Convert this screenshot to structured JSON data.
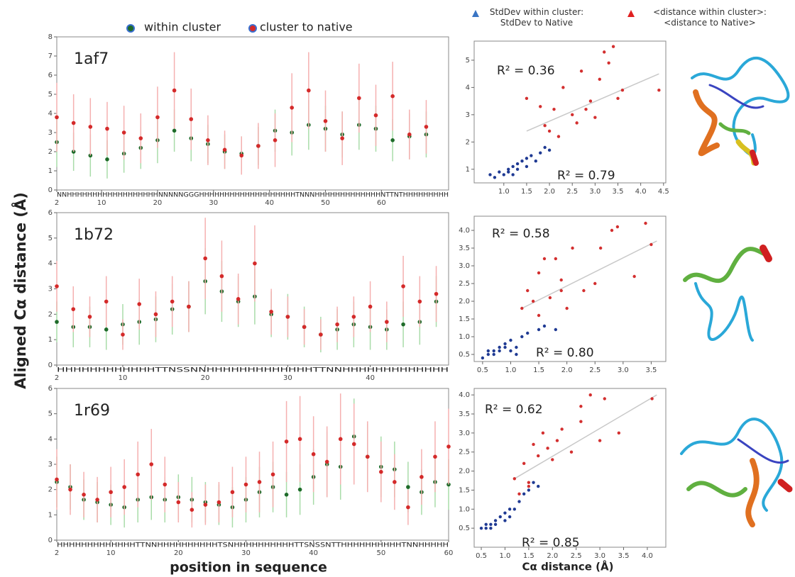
{
  "figure": {
    "ylabel": "Aligned Cα distance (Å)",
    "xlabel_left": "position in sequence",
    "xlabel_right": "Cα distance (Å)"
  },
  "chart_data": [
    {
      "type": "errorbar",
      "label": "1af7",
      "sequence": "NNHHHHHHHHHHHHHHHHHHNNNNNGGGHHHHHHHHHHHHHHHHHHHTNNNHHHHHHHHHHHHHNTTNTHHHHHHHHH",
      "xlim": [
        2,
        72
      ],
      "xticks": [
        2,
        10,
        20,
        30,
        40,
        50,
        60
      ],
      "ylim": [
        0,
        8
      ],
      "yticks": [
        0,
        1,
        2,
        3,
        4,
        5,
        6,
        7,
        8
      ],
      "x": [
        2,
        5,
        8,
        11,
        14,
        17,
        20,
        23,
        26,
        29,
        32,
        35,
        38,
        41,
        44,
        47,
        50,
        53,
        56,
        59,
        62,
        65,
        68
      ],
      "series": [
        {
          "name": "within cluster",
          "color": "#1e6b2a",
          "error_color": "#a9dca9",
          "values": [
            2.5,
            2.0,
            1.8,
            1.6,
            1.9,
            2.2,
            2.6,
            3.1,
            2.7,
            2.4,
            2.0,
            1.9,
            2.3,
            3.1,
            3.0,
            3.4,
            3.2,
            2.9,
            3.4,
            3.2,
            2.6,
            2.8,
            2.9
          ],
          "errors": [
            1.3,
            1.0,
            1.1,
            1.0,
            1.0,
            1.1,
            1.2,
            1.1,
            1.2,
            1.0,
            0.9,
            0.9,
            1.0,
            1.1,
            1.2,
            1.3,
            1.2,
            1.2,
            1.3,
            1.2,
            1.1,
            1.2,
            1.2
          ]
        },
        {
          "name": "cluster to native",
          "color": "#d42a2a",
          "error_color": "#f5b0b0",
          "values": [
            3.8,
            3.5,
            3.3,
            3.2,
            3.0,
            2.7,
            3.8,
            5.2,
            3.7,
            2.6,
            2.1,
            1.8,
            2.3,
            2.6,
            4.3,
            5.2,
            3.6,
            2.7,
            4.8,
            3.9,
            4.9,
            2.9,
            3.3
          ],
          "errors": [
            1.8,
            1.5,
            1.5,
            1.4,
            1.4,
            1.3,
            1.6,
            2.0,
            1.6,
            1.3,
            1.0,
            1.0,
            1.2,
            1.4,
            1.8,
            2.0,
            1.6,
            1.4,
            1.8,
            1.6,
            1.8,
            1.3,
            1.4
          ]
        }
      ]
    },
    {
      "type": "errorbar",
      "label": "1b72",
      "sequence": "HHHHHHHHHHHHTTNSSNNHHHHHHHHHHHHHTTNNHHHHHHHHHHHHH",
      "xlim": [
        2,
        49.5
      ],
      "xticks": [
        2,
        10,
        20,
        30,
        40
      ],
      "ylim": [
        0,
        6
      ],
      "yticks": [
        0,
        1,
        2,
        3,
        4,
        5,
        6
      ],
      "x": [
        2,
        4,
        6,
        8,
        10,
        12,
        14,
        16,
        18,
        20,
        22,
        24,
        26,
        28,
        30,
        32,
        34,
        36,
        38,
        40,
        42,
        44,
        46,
        48
      ],
      "series": [
        {
          "color": "#1e6b2a",
          "error_color": "#a9dca9",
          "values": [
            1.7,
            1.5,
            1.5,
            1.4,
            1.6,
            1.7,
            1.8,
            2.2,
            2.3,
            3.3,
            2.9,
            2.5,
            2.7,
            2.0,
            1.9,
            1.5,
            1.2,
            1.4,
            1.6,
            1.5,
            1.4,
            1.6,
            1.7,
            2.5
          ],
          "errors": [
            0.8,
            0.8,
            0.8,
            0.8,
            0.8,
            0.9,
            0.9,
            1.0,
            1.0,
            1.3,
            1.2,
            1.0,
            1.1,
            0.9,
            0.9,
            0.8,
            0.7,
            0.8,
            0.9,
            0.9,
            0.8,
            0.9,
            0.9,
            1.0
          ]
        },
        {
          "color": "#d42a2a",
          "error_color": "#f5b0b0",
          "values": [
            3.1,
            2.2,
            1.9,
            2.5,
            1.2,
            2.4,
            2.0,
            2.5,
            2.3,
            4.2,
            3.5,
            2.6,
            4.0,
            2.1,
            1.9,
            1.5,
            1.2,
            1.6,
            1.9,
            2.3,
            1.7,
            3.1,
            2.5,
            2.8
          ],
          "errors": [
            1.0,
            0.9,
            0.8,
            1.0,
            0.6,
            1.0,
            0.9,
            1.0,
            1.0,
            1.6,
            1.4,
            1.0,
            1.5,
            0.9,
            0.8,
            0.7,
            0.6,
            0.7,
            0.8,
            1.0,
            0.8,
            1.2,
            1.0,
            1.1
          ]
        }
      ]
    },
    {
      "type": "errorbar",
      "label": "1r69",
      "sequence": "HHHHHHHHHHHHHTTNNHHHHHHHHHHTSNHHHHHHHHHHTTSNSSNTTHHHHHHHHHHTNNHHHHH",
      "xlim": [
        2,
        60
      ],
      "xticks": [
        2,
        10,
        20,
        30,
        40,
        50,
        60
      ],
      "ylim": [
        0,
        6
      ],
      "yticks": [
        0,
        1,
        2,
        3,
        4,
        5,
        6
      ],
      "x": [
        2,
        4,
        6,
        8,
        10,
        12,
        14,
        16,
        18,
        20,
        22,
        24,
        26,
        28,
        30,
        32,
        34,
        36,
        38,
        40,
        42,
        44,
        46,
        48,
        50,
        52,
        54,
        56,
        58,
        60
      ],
      "series": [
        {
          "color": "#1e6b2a",
          "error_color": "#a9dca9",
          "values": [
            2.3,
            2.1,
            1.6,
            1.5,
            1.4,
            1.3,
            1.6,
            1.7,
            1.6,
            1.7,
            1.6,
            1.5,
            1.4,
            1.3,
            1.6,
            1.9,
            2.1,
            1.8,
            2.0,
            2.5,
            3.0,
            2.9,
            4.1,
            3.3,
            2.9,
            2.8,
            2.1,
            1.9,
            2.3,
            2.2
          ],
          "errors": [
            1.0,
            0.9,
            0.8,
            0.8,
            0.8,
            0.8,
            0.9,
            0.9,
            0.9,
            0.9,
            0.9,
            0.8,
            0.8,
            0.8,
            0.9,
            1.0,
            1.0,
            0.9,
            1.0,
            1.1,
            1.3,
            1.3,
            1.5,
            1.3,
            1.2,
            1.1,
            1.0,
            0.9,
            1.0,
            1.0
          ]
        },
        {
          "color": "#d42a2a",
          "error_color": "#f5b0b0",
          "values": [
            2.4,
            2.0,
            1.8,
            1.6,
            1.9,
            2.1,
            2.6,
            3.0,
            2.2,
            1.5,
            1.2,
            1.4,
            1.5,
            1.9,
            2.2,
            2.3,
            2.6,
            3.9,
            4.0,
            3.4,
            3.1,
            4.0,
            3.8,
            3.3,
            2.7,
            2.3,
            1.3,
            2.5,
            3.3,
            3.7
          ],
          "errors": [
            1.2,
            1.0,
            0.9,
            0.9,
            1.0,
            1.1,
            1.3,
            1.4,
            1.1,
            0.8,
            0.7,
            0.8,
            0.8,
            1.0,
            1.1,
            1.2,
            1.3,
            1.6,
            1.7,
            1.5,
            1.4,
            1.8,
            1.6,
            1.4,
            1.2,
            1.1,
            0.7,
            1.1,
            1.4,
            1.5
          ]
        }
      ]
    },
    {
      "type": "scatter",
      "xlim": [
        0.35,
        4.55
      ],
      "ylim": [
        0.5,
        5.7
      ],
      "xticks": [
        {
          "value": 1,
          "label": "1.0"
        },
        1.5,
        {
          "value": 2,
          "label": "2.0"
        },
        2.5,
        {
          "value": 3,
          "label": "3.0"
        },
        3.5,
        {
          "value": 4,
          "label": "4.0"
        },
        4.5
      ],
      "yticks": [
        1,
        2,
        3,
        4,
        5
      ],
      "series": [
        {
          "name": "StdDev within cluster: StdDev to Native",
          "color": "#1f3a93",
          "legend_color": "#3a75c4",
          "x": [
            0.7,
            0.8,
            0.9,
            1.0,
            1.1,
            1.1,
            1.2,
            1.3,
            1.3,
            1.4,
            1.5,
            1.5,
            1.6,
            1.7,
            1.8,
            1.9,
            2.0,
            1.2
          ],
          "values": [
            0.8,
            0.7,
            0.9,
            0.8,
            1.0,
            0.9,
            1.1,
            1.0,
            1.2,
            1.3,
            1.1,
            1.4,
            1.5,
            1.3,
            1.6,
            1.8,
            1.7,
            0.8
          ]
        },
        {
          "name": "<distance within cluster>: <distance to Native>",
          "color": "#d32f2f",
          "legend_color": "#e02020",
          "x": [
            1.5,
            1.8,
            1.9,
            2.0,
            2.1,
            2.3,
            2.5,
            2.6,
            2.7,
            2.8,
            2.9,
            3.0,
            3.1,
            3.2,
            3.3,
            3.4,
            3.5,
            3.6,
            4.4,
            2.2
          ],
          "values": [
            3.6,
            3.3,
            2.6,
            2.4,
            3.2,
            4.0,
            3.0,
            2.7,
            4.6,
            3.2,
            3.5,
            2.9,
            4.3,
            5.3,
            4.9,
            5.5,
            3.6,
            3.9,
            3.9,
            2.2
          ]
        }
      ],
      "trendline": {
        "x": [
          1.5,
          4.4
        ],
        "y": [
          2.4,
          4.5
        ]
      },
      "annotations": [
        "R² = 0.36",
        "R² = 0.79"
      ]
    },
    {
      "type": "scatter",
      "xlim": [
        0.35,
        3.76
      ],
      "ylim": [
        0.3,
        4.4
      ],
      "xticks": [
        0.5,
        {
          "value": 1,
          "label": "1.0"
        },
        1.5,
        {
          "value": 2,
          "label": "2.0"
        },
        2.5,
        {
          "value": 3,
          "label": "3.0"
        },
        3.5
      ],
      "yticks": [
        0.5,
        {
          "value": 1,
          "label": "1.0"
        },
        1.5,
        {
          "value": 2,
          "label": "2.0"
        },
        2.5,
        {
          "value": 3,
          "label": "3.0"
        },
        3.5,
        {
          "value": 4,
          "label": "4.0"
        }
      ],
      "series": [
        {
          "color": "#1f3a93",
          "x": [
            0.5,
            0.6,
            0.7,
            0.7,
            0.8,
            0.8,
            0.9,
            0.9,
            1.0,
            1.0,
            1.1,
            1.2,
            1.3,
            1.5,
            1.6,
            1.8,
            0.6,
            1.1
          ],
          "values": [
            0.4,
            0.5,
            0.6,
            0.5,
            0.7,
            0.6,
            0.8,
            0.7,
            0.9,
            0.6,
            0.7,
            1.0,
            1.1,
            1.2,
            1.3,
            1.2,
            0.6,
            0.5
          ]
        },
        {
          "color": "#d32f2f",
          "x": [
            1.2,
            1.3,
            1.4,
            1.5,
            1.6,
            1.7,
            1.8,
            1.9,
            2.0,
            2.1,
            2.3,
            2.5,
            2.6,
            2.8,
            2.9,
            3.2,
            3.4,
            3.5,
            1.5,
            1.9
          ],
          "values": [
            1.8,
            2.3,
            2.0,
            2.8,
            3.2,
            2.1,
            3.2,
            2.3,
            1.8,
            3.5,
            2.3,
            2.5,
            3.5,
            4.0,
            4.1,
            2.7,
            4.2,
            3.6,
            1.6,
            2.6
          ]
        }
      ],
      "trendline": {
        "x": [
          1.2,
          3.6
        ],
        "y": [
          1.8,
          3.7
        ]
      },
      "annotations": [
        "R² = 0.58",
        "R² = 0.80"
      ]
    },
    {
      "type": "scatter",
      "xlim": [
        0.35,
        4.39
      ],
      "ylim": [
        0,
        4.17
      ],
      "xticks": [
        0.5,
        {
          "value": 1,
          "label": "1.0"
        },
        1.5,
        {
          "value": 2,
          "label": "2.0"
        },
        2.5,
        {
          "value": 3,
          "label": "3.0"
        },
        3.5,
        {
          "value": 4,
          "label": "4.0"
        }
      ],
      "yticks": [
        0.5,
        {
          "value": 1,
          "label": "1.0"
        },
        1.5,
        {
          "value": 2,
          "label": "2.0"
        },
        2.5,
        {
          "value": 3,
          "label": "3.0"
        },
        3.5,
        {
          "value": 4,
          "label": "4.0"
        }
      ],
      "series": [
        {
          "color": "#1f3a93",
          "x": [
            0.5,
            0.6,
            0.6,
            0.7,
            0.8,
            0.8,
            0.9,
            1.0,
            1.0,
            1.1,
            1.2,
            1.3,
            1.4,
            1.5,
            1.6,
            1.7,
            0.7,
            1.1
          ],
          "values": [
            0.5,
            0.5,
            0.6,
            0.5,
            0.7,
            0.6,
            0.8,
            0.7,
            0.9,
            1.0,
            1.0,
            1.2,
            1.4,
            1.5,
            1.7,
            1.6,
            0.6,
            0.8
          ]
        },
        {
          "color": "#d32f2f",
          "x": [
            1.2,
            1.3,
            1.4,
            1.5,
            1.6,
            1.7,
            1.8,
            1.9,
            2.0,
            2.2,
            2.4,
            2.6,
            2.8,
            3.0,
            3.1,
            3.4,
            4.1,
            1.5,
            2.1,
            2.6
          ],
          "values": [
            1.8,
            1.4,
            2.2,
            1.7,
            2.7,
            2.4,
            3.0,
            2.6,
            2.3,
            3.1,
            2.5,
            3.7,
            4.0,
            2.8,
            3.9,
            3.0,
            3.9,
            1.6,
            2.8,
            3.3
          ]
        }
      ],
      "trendline": {
        "x": [
          1.2,
          4.2
        ],
        "y": [
          1.8,
          4.0
        ]
      },
      "annotations": [
        "R² = 0.62",
        "R² = 0.85"
      ]
    }
  ]
}
